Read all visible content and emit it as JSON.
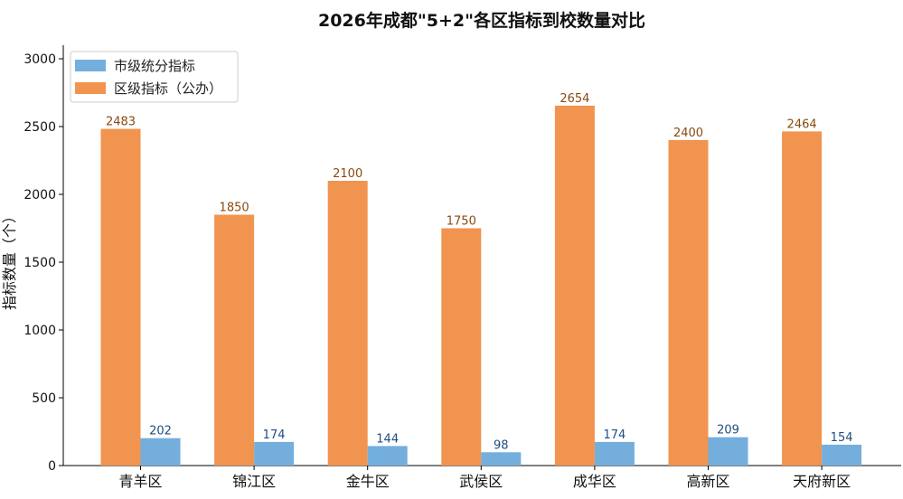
{
  "chart_data": {
    "type": "bar",
    "title": "2026年成都\"5+2\"各区指标到校数量对比",
    "xlabel": "",
    "ylabel": "指标数量（个）",
    "categories": [
      "青羊区",
      "锦江区",
      "金牛区",
      "武侯区",
      "成华区",
      "高新区",
      "天府新区"
    ],
    "series": [
      {
        "name": "区级指标（公办）",
        "color": "#f0944f",
        "values": [
          2483,
          1850,
          2100,
          1750,
          2654,
          2400,
          2464
        ]
      },
      {
        "name": "市级统分指标",
        "color": "#74aedd",
        "values": [
          202,
          174,
          144,
          98,
          174,
          209,
          154
        ]
      }
    ],
    "ylim": [
      0,
      3100
    ],
    "yticks": [
      0,
      500,
      1000,
      1500,
      2000,
      2500,
      3000
    ],
    "legend": {
      "position": "top-left",
      "order": [
        "市级统分指标",
        "区级指标（公办）"
      ]
    },
    "grid": false
  }
}
